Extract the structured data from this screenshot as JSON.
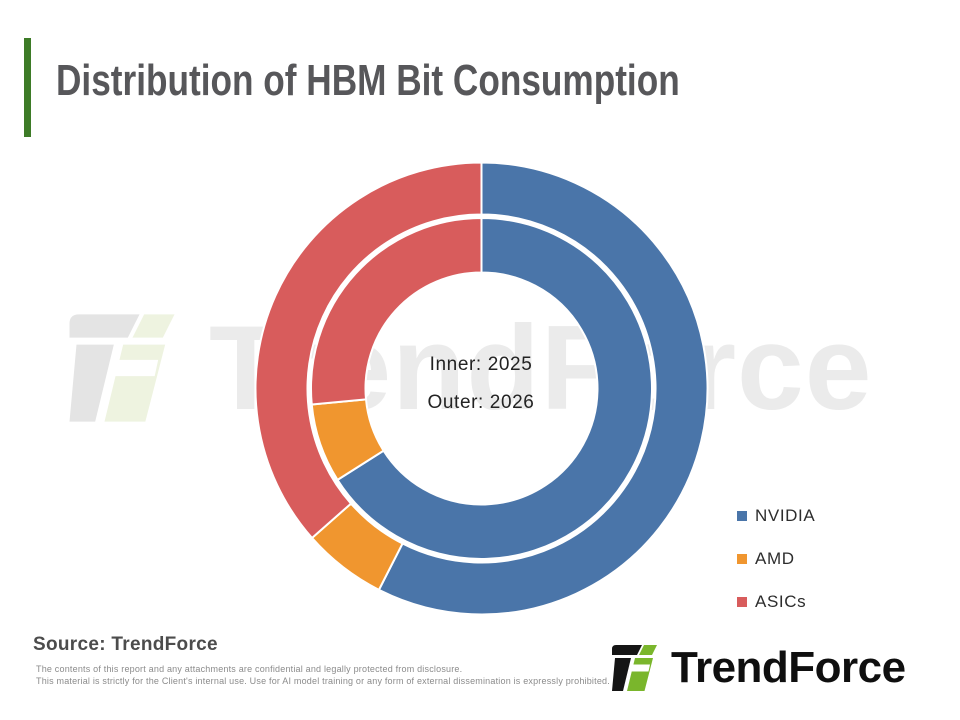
{
  "header": {
    "title": "Distribution of HBM Bit Consumption"
  },
  "colors": {
    "accent_green": "#3d7b27",
    "brand_green": "#7ab62c",
    "nvidia_blue": "#4a75a9",
    "amd_orange": "#f0962f",
    "asics_red": "#d85c5c",
    "title_gray": "#57575a"
  },
  "watermark": {
    "text": "TrendForce"
  },
  "chart_data": {
    "type": "pie",
    "subtype": "nested_donut",
    "title": "Distribution of HBM Bit Consumption",
    "units": "percent share",
    "categories": [
      "NVIDIA",
      "AMD",
      "ASICs"
    ],
    "colors": [
      "#4a75a9",
      "#f0962f",
      "#d85c5c"
    ],
    "series": [
      {
        "name": "2025",
        "ring": "inner",
        "values": [
          66,
          7.5,
          26.5
        ]
      },
      {
        "name": "2026",
        "ring": "outer",
        "values": [
          57.5,
          6,
          36.5
        ]
      }
    ],
    "center_labels": [
      "Inner: 2025",
      "Outer: 2026"
    ],
    "start_angle": "12 o'clock, clockwise",
    "legend_position": "right"
  },
  "footer": {
    "source": "Source: TrendForce",
    "disclaimer_line1": "The contents of this report and any attachments are confidential and legally protected from disclosure.",
    "disclaimer_line2": "This material is strictly for the Client's internal use. Use for AI model training or any form of external dissemination is expressly prohibited.",
    "logo_text": "TrendForce"
  }
}
